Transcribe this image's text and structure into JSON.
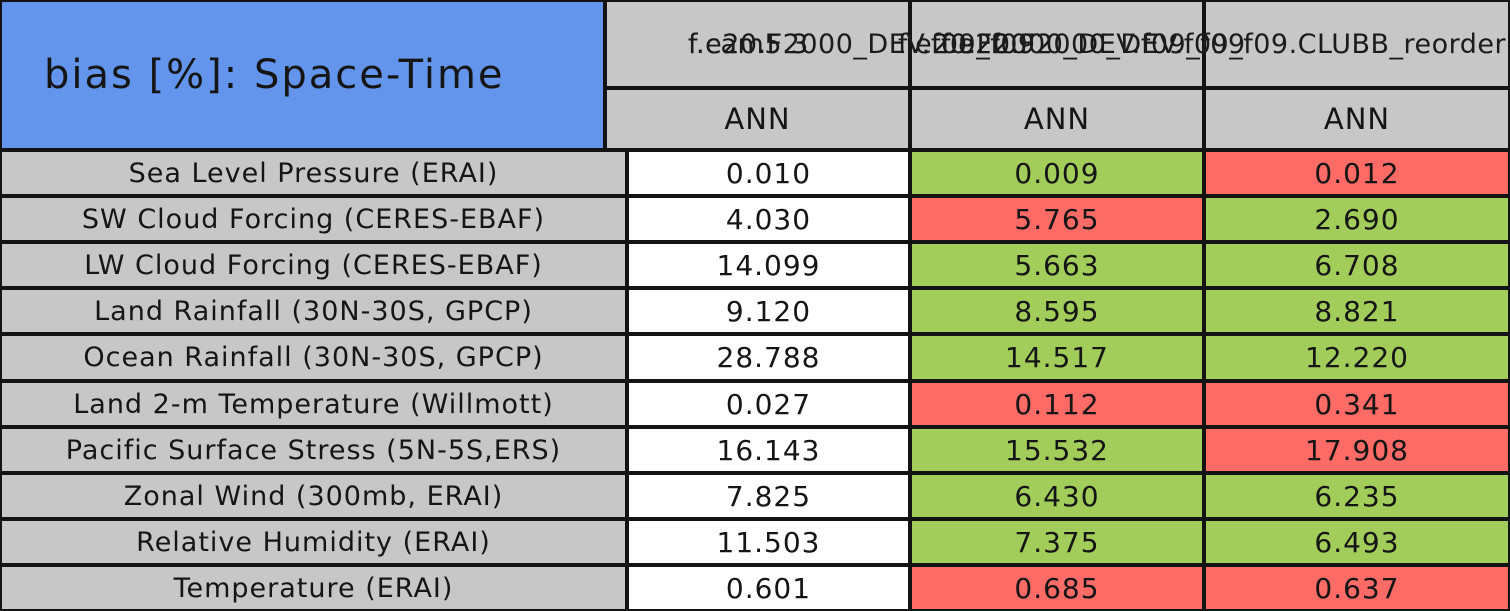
{
  "title": "bias [%]: Space-Time",
  "columns": [
    {
      "case_name": "f.cam5.3",
      "season": "ANN"
    },
    {
      "case_name": "f.e20.F2000_DEV.f09_f09",
      "season": "ANN"
    },
    {
      "case_name": "f.e20.F2000_DEV.f09_f09.CLUBB_reorder",
      "season": "ANN"
    }
  ],
  "rows": [
    {
      "label": "Sea Level Pressure (ERAI)",
      "values": [
        {
          "text": "0.010",
          "status": "neutral"
        },
        {
          "text": "0.009",
          "status": "better"
        },
        {
          "text": "0.012",
          "status": "worse"
        }
      ]
    },
    {
      "label": "SW Cloud Forcing (CERES-EBAF)",
      "values": [
        {
          "text": "4.030",
          "status": "neutral"
        },
        {
          "text": "5.765",
          "status": "worse"
        },
        {
          "text": "2.690",
          "status": "better"
        }
      ]
    },
    {
      "label": "LW Cloud Forcing (CERES-EBAF)",
      "values": [
        {
          "text": "14.099",
          "status": "neutral"
        },
        {
          "text": "5.663",
          "status": "better"
        },
        {
          "text": "6.708",
          "status": "better"
        }
      ]
    },
    {
      "label": "Land Rainfall (30N-30S, GPCP)",
      "values": [
        {
          "text": "9.120",
          "status": "neutral"
        },
        {
          "text": "8.595",
          "status": "better"
        },
        {
          "text": "8.821",
          "status": "better"
        }
      ]
    },
    {
      "label": "Ocean Rainfall (30N-30S, GPCP)",
      "values": [
        {
          "text": "28.788",
          "status": "neutral"
        },
        {
          "text": "14.517",
          "status": "better"
        },
        {
          "text": "12.220",
          "status": "better"
        }
      ]
    },
    {
      "label": "Land 2-m Temperature (Willmott)",
      "values": [
        {
          "text": "0.027",
          "status": "neutral"
        },
        {
          "text": "0.112",
          "status": "worse"
        },
        {
          "text": "0.341",
          "status": "worse"
        }
      ]
    },
    {
      "label": "Pacific Surface Stress (5N-5S,ERS)",
      "values": [
        {
          "text": "16.143",
          "status": "neutral"
        },
        {
          "text": "15.532",
          "status": "better"
        },
        {
          "text": "17.908",
          "status": "worse"
        }
      ]
    },
    {
      "label": "Zonal Wind (300mb, ERAI)",
      "values": [
        {
          "text": "7.825",
          "status": "neutral"
        },
        {
          "text": "6.430",
          "status": "better"
        },
        {
          "text": "6.235",
          "status": "better"
        }
      ]
    },
    {
      "label": "Relative Humidity (ERAI)",
      "values": [
        {
          "text": "11.503",
          "status": "neutral"
        },
        {
          "text": "7.375",
          "status": "better"
        },
        {
          "text": "6.493",
          "status": "better"
        }
      ]
    },
    {
      "label": "Temperature (ERAI)",
      "values": [
        {
          "text": "0.601",
          "status": "neutral"
        },
        {
          "text": "0.685",
          "status": "worse"
        },
        {
          "text": "0.637",
          "status": "worse"
        }
      ]
    }
  ],
  "colors": {
    "neutral": "#ffffff",
    "better": "#a3cd5a",
    "worse": "#fc6b66",
    "header_bg": "#c7c7c7",
    "title_bg": "#6495ec",
    "border": "#131313"
  },
  "chart_data": {
    "type": "table",
    "title": "bias [%]: Space-Time",
    "column_headers": [
      "f.cam5.3",
      "f.e20.F2000_DEV.f09_f09",
      "f.e20.F2000_DEV.f09_f09.CLUBB_reorder"
    ],
    "subheaders": [
      "ANN",
      "ANN",
      "ANN"
    ],
    "row_labels": [
      "Sea Level Pressure (ERAI)",
      "SW Cloud Forcing (CERES-EBAF)",
      "LW Cloud Forcing (CERES-EBAF)",
      "Land Rainfall (30N-30S, GPCP)",
      "Ocean Rainfall (30N-30S, GPCP)",
      "Land 2-m Temperature (Willmott)",
      "Pacific Surface Stress (5N-5S,ERS)",
      "Zonal Wind (300mb, ERAI)",
      "Relative Humidity (ERAI)",
      "Temperature (ERAI)"
    ],
    "series": [
      {
        "name": "f.cam5.3",
        "values": [
          0.01,
          4.03,
          14.099,
          9.12,
          28.788,
          0.027,
          16.143,
          7.825,
          11.503,
          0.601
        ]
      },
      {
        "name": "f.e20.F2000_DEV.f09_f09",
        "values": [
          0.009,
          5.765,
          5.663,
          8.595,
          14.517,
          0.112,
          15.532,
          6.43,
          7.375,
          0.685
        ]
      },
      {
        "name": "f.e20.F2000_DEV.f09_f09.CLUBB_reorder",
        "values": [
          0.012,
          2.69,
          6.708,
          8.821,
          12.22,
          0.341,
          17.908,
          6.235,
          6.493,
          0.637
        ]
      }
    ],
    "cell_highlight": [
      [
        "none",
        "better",
        "worse"
      ],
      [
        "none",
        "worse",
        "better"
      ],
      [
        "none",
        "better",
        "better"
      ],
      [
        "none",
        "better",
        "better"
      ],
      [
        "none",
        "better",
        "better"
      ],
      [
        "none",
        "worse",
        "worse"
      ],
      [
        "none",
        "better",
        "worse"
      ],
      [
        "none",
        "better",
        "better"
      ],
      [
        "none",
        "better",
        "better"
      ],
      [
        "none",
        "worse",
        "worse"
      ]
    ],
    "legend_note_colors": {
      "better_than_first_case": "#a3cd5a",
      "worse_than_first_case": "#fc6b66"
    }
  }
}
